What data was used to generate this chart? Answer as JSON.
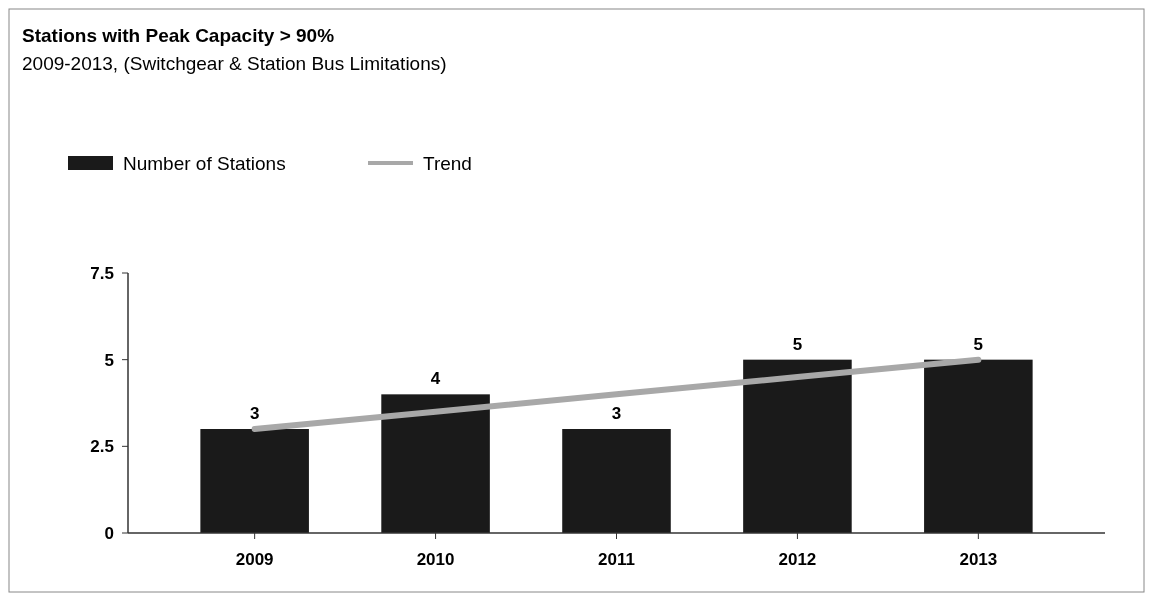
{
  "chart_data": {
    "type": "bar",
    "title": "Stations with Peak Capacity > 90%",
    "subtitle": "2009-2013, (Switchgear & Station Bus Limitations)",
    "categories": [
      "2009",
      "2010",
      "2011",
      "2012",
      "2013"
    ],
    "series": [
      {
        "name": "Number of Stations",
        "color": "#1a1a1a",
        "values": [
          3,
          4,
          3,
          5,
          5
        ],
        "value_labels": [
          "3",
          "4",
          "3",
          "5",
          "5"
        ]
      },
      {
        "name": "Trend",
        "type": "line",
        "color": "#a8a8a8",
        "values": [
          3,
          3.5,
          4,
          4.5,
          5
        ]
      }
    ],
    "ylim": [
      0,
      7.5
    ],
    "yticks": [
      0,
      2.5,
      5,
      7.5
    ],
    "grid": false,
    "legend": "top left"
  }
}
